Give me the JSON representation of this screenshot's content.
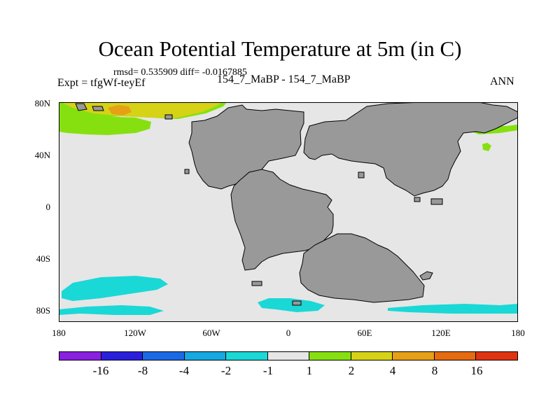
{
  "title": "Ocean Potential Temperature at 5m (in C)",
  "stats": "rmsd= 0.535909 diff= -0.0167885",
  "expt": "Expt = tfgWf-teyEf",
  "center_label": "154_7_MaBP - 154_7_MaBP",
  "season": "ANN",
  "map": {
    "lat_labels": [
      "80N",
      "40N",
      "0",
      "40S",
      "80S"
    ],
    "lon_labels": [
      "180",
      "120W",
      "60W",
      "0",
      "60E",
      "120E",
      "180"
    ],
    "colors": {
      "land": "#999999",
      "ocean_neutral": "#e6e6e6",
      "coast": "#000000"
    }
  },
  "colorbar": {
    "colors": [
      "#8a20e0",
      "#2a20dc",
      "#1a6ae6",
      "#16a8e0",
      "#1ad8d6",
      "#e6e6e6",
      "#86e010",
      "#d6d216",
      "#e6a016",
      "#e66a10",
      "#e03410"
    ],
    "labels": [
      "-16",
      "-8",
      "-4",
      "-2",
      "-1",
      "1",
      "2",
      "4",
      "8",
      "16"
    ]
  }
}
